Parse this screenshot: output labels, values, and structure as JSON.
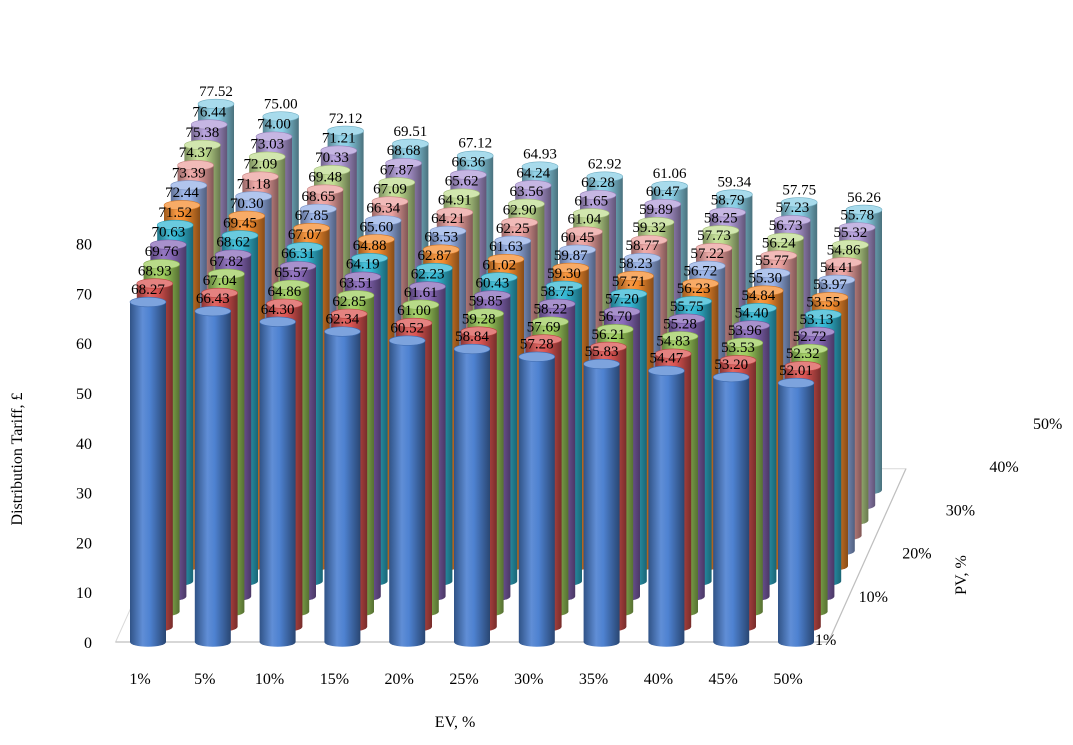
{
  "chart_data": {
    "type": "bar",
    "style": "3d-cylinder",
    "xlabel": "EV, %",
    "ylabel": "Distribution Tariff, £",
    "zlabel": "PV, %",
    "ylim": [
      0,
      80
    ],
    "yticks": [
      "0",
      "10",
      "20",
      "30",
      "40",
      "50",
      "60",
      "70",
      "80"
    ],
    "categories": [
      "1%",
      "5%",
      "10%",
      "15%",
      "20%",
      "25%",
      "30%",
      "35%",
      "40%",
      "45%",
      "50%"
    ],
    "depth_categories": [
      "1%",
      "10%",
      "20%",
      "30%",
      "40%",
      "50%"
    ],
    "grid": false,
    "legend": "none",
    "series": [
      {
        "values": [
          68.27,
          66.43,
          64.3,
          62.34,
          60.52,
          58.84,
          57.28,
          55.83,
          54.47,
          53.2,
          52.01
        ],
        "labels": [
          "68.27",
          "66.43",
          "64.30",
          "62.34",
          "60.52",
          "58.84",
          "57.28",
          "55.83",
          "54.47",
          "53.20",
          "52.01"
        ],
        "color": "#4a7fd0"
      },
      {
        "values": [
          68.93,
          67.04,
          64.86,
          62.85,
          61.0,
          59.28,
          57.69,
          56.21,
          54.83,
          53.53,
          52.32
        ],
        "labels": [
          "68.93",
          "67.04",
          "64.86",
          "62.85",
          "61.00",
          "59.28",
          "57.69",
          "56.21",
          "54.83",
          "53.53",
          "52.32"
        ],
        "color": "#d9514e"
      },
      {
        "values": [
          69.76,
          67.82,
          65.57,
          63.51,
          61.61,
          59.85,
          58.22,
          56.7,
          55.28,
          53.96,
          52.72
        ],
        "labels": [
          "69.76",
          "67.82",
          "65.57",
          "63.51",
          "61.61",
          "59.85",
          "58.22",
          "56.70",
          "55.28",
          "53.96",
          "52.72"
        ],
        "color": "#9ccc5a"
      },
      {
        "values": [
          70.63,
          68.62,
          66.31,
          64.19,
          62.23,
          60.43,
          58.75,
          57.2,
          55.75,
          54.4,
          53.13
        ],
        "labels": [
          "70.63",
          "68.62",
          "66.31",
          "64.19",
          "62.23",
          "60.43",
          "58.75",
          "57.20",
          "55.75",
          "54.40",
          "53.13"
        ],
        "color": "#8666b8"
      },
      {
        "values": [
          71.52,
          69.45,
          67.07,
          64.88,
          62.87,
          61.02,
          59.3,
          57.71,
          56.23,
          54.84,
          53.55
        ],
        "labels": [
          "71.52",
          "69.45",
          "67.07",
          "64.88",
          "62.87",
          "61.02",
          "59.30",
          "57.71",
          "56.23",
          "54.84",
          "53.55"
        ],
        "color": "#2fb6d2"
      },
      {
        "values": [
          72.44,
          70.3,
          67.85,
          65.6,
          63.53,
          61.63,
          59.87,
          58.23,
          56.72,
          55.3,
          53.97
        ],
        "labels": [
          "72.44",
          "70.30",
          "67.85",
          "65.60",
          "63.53",
          "61.63",
          "59.87",
          "58.23",
          "56.72",
          "55.30",
          "53.97"
        ],
        "color": "#f58a2a"
      },
      {
        "values": [
          73.39,
          71.18,
          68.65,
          66.34,
          64.21,
          62.25,
          60.45,
          58.77,
          57.22,
          55.77,
          54.41
        ],
        "labels": [
          "73.39",
          "71.18",
          "68.65",
          "66.34",
          "64.21",
          "62.25",
          "60.45",
          "58.77",
          "57.22",
          "55.77",
          "54.41"
        ],
        "color": "#93aee6"
      },
      {
        "values": [
          74.37,
          72.09,
          69.48,
          67.09,
          64.91,
          62.9,
          61.04,
          59.32,
          57.73,
          56.24,
          54.86
        ],
        "labels": [
          "74.37",
          "72.09",
          "69.48",
          "67.09",
          "64.91",
          "62.90",
          "61.04",
          "59.32",
          "57.73",
          "56.24",
          "54.86"
        ],
        "color": "#eb9f9d"
      },
      {
        "values": [
          75.38,
          73.03,
          70.33,
          67.87,
          65.62,
          63.56,
          61.65,
          59.89,
          58.25,
          56.73,
          55.32
        ],
        "labels": [
          "75.38",
          "73.03",
          "70.33",
          "67.87",
          "65.62",
          "63.56",
          "61.65",
          "59.89",
          "58.25",
          "56.73",
          "55.32"
        ],
        "color": "#bfdc8e"
      },
      {
        "values": [
          76.44,
          74.0,
          71.21,
          68.68,
          66.36,
          64.24,
          62.28,
          60.47,
          58.79,
          57.23,
          55.78
        ],
        "labels": [
          "76.44",
          "74.00",
          "71.21",
          "68.68",
          "66.36",
          "64.24",
          "62.28",
          "60.47",
          "58.79",
          "57.23",
          "55.78"
        ],
        "color": "#b09ad8"
      },
      {
        "values": [
          77.52,
          75.0,
          72.12,
          69.51,
          67.12,
          64.93,
          62.92,
          61.06,
          59.34,
          57.75,
          56.26
        ],
        "labels": [
          "77.52",
          "75.00",
          "72.12",
          "69.51",
          "67.12",
          "64.93",
          "62.92",
          "61.06",
          "59.34",
          "57.75",
          "56.26"
        ],
        "color": "#86cde4"
      }
    ]
  }
}
